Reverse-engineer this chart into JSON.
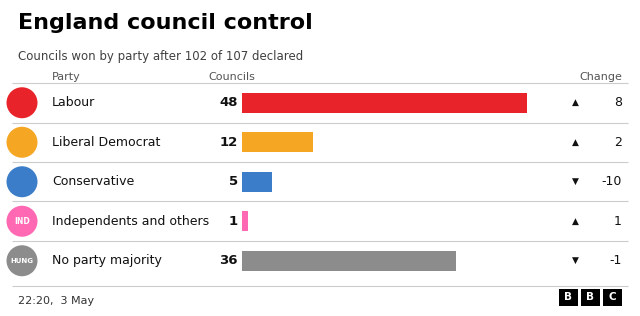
{
  "title": "England council control",
  "subtitle": "Councils won by party after 102 of 107 declared",
  "footer_left": "22:20,  3 May",
  "parties": [
    "Labour",
    "Liberal Democrat",
    "Conservative",
    "Independents and others",
    "No party majority"
  ],
  "councils": [
    48,
    12,
    5,
    1,
    36
  ],
  "changes": [
    8,
    2,
    -10,
    1,
    -1
  ],
  "bar_colors": [
    "#E8232A",
    "#F5A623",
    "#3B7DC8",
    "#FF69B4",
    "#8C8C8C"
  ],
  "circle_colors": [
    "#E8232A",
    "#F5A623",
    "#3B7DC8",
    "#FF69B4",
    "#8C8C8C"
  ],
  "circle_labels": [
    "",
    "",
    "",
    "IND",
    "HUNG"
  ],
  "max_councils": 48,
  "bg_color": "#FFFFFF"
}
